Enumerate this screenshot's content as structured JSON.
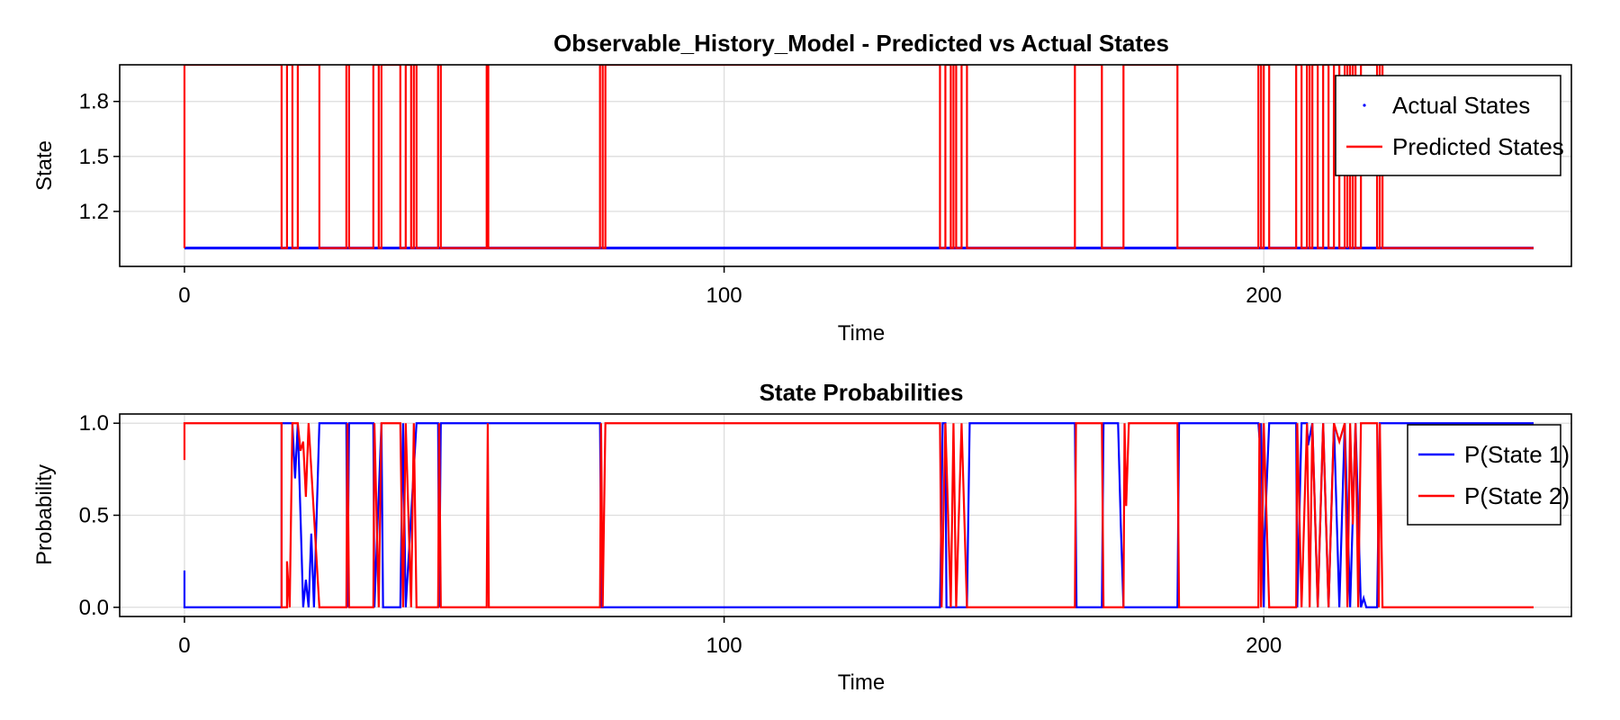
{
  "chart_data": [
    {
      "type": "line",
      "title": "Observable_History_Model - Predicted vs Actual States",
      "xlabel": "Time",
      "ylabel": "State",
      "xlim": [
        -12,
        257
      ],
      "ylim": [
        0.9,
        2.0
      ],
      "xticks": [
        0,
        100,
        200
      ],
      "yticks": [
        1.2,
        1.5,
        1.8
      ],
      "ytick_labels": [
        "1.2",
        "1.5",
        "1.8"
      ],
      "grid": true,
      "legend_position": "top-right",
      "series": [
        {
          "name": "Actual States",
          "style": "markers",
          "color": "#0000ff",
          "segments": [
            {
              "x0": 0,
              "x1": 250,
              "y": 1.0
            }
          ]
        },
        {
          "name": "Predicted States",
          "style": "step",
          "color": "#ff0000",
          "baseline": 1.0,
          "high": 2.0,
          "intervals": [
            [
              0,
              18
            ],
            [
              19,
              20
            ],
            [
              21,
              25
            ],
            [
              30,
              30.5
            ],
            [
              35,
              36
            ],
            [
              36.5,
              40
            ],
            [
              41,
              42
            ],
            [
              42.5,
              43
            ],
            [
              47,
              47.5
            ],
            [
              56,
              56.3
            ],
            [
              77,
              77.5
            ],
            [
              78,
              140
            ],
            [
              141,
              142
            ],
            [
              142.5,
              143
            ],
            [
              144,
              145
            ],
            [
              165,
              170
            ],
            [
              174,
              184
            ],
            [
              199,
              199.5
            ],
            [
              200,
              201
            ],
            [
              206,
              207
            ],
            [
              208,
              208.5
            ],
            [
              209,
              210
            ],
            [
              211,
              212
            ],
            [
              213,
              214
            ],
            [
              215,
              215.5
            ],
            [
              215.5,
              216
            ],
            [
              216.5,
              217
            ],
            [
              218,
              221
            ],
            [
              221.5,
              222
            ]
          ]
        }
      ]
    },
    {
      "type": "line",
      "title": "State Probabilities",
      "xlabel": "Time",
      "ylabel": "Probability",
      "xlim": [
        -12,
        257
      ],
      "ylim": [
        -0.05,
        1.05
      ],
      "xticks": [
        0,
        100,
        200
      ],
      "yticks": [
        0.0,
        0.5,
        1.0
      ],
      "ytick_labels": [
        "0.0",
        "0.5",
        "1.0"
      ],
      "grid": true,
      "legend_position": "top-right",
      "series": [
        {
          "name": "P(State 1)",
          "color": "#0000ff",
          "points": [
            [
              0,
              0.2
            ],
            [
              0,
              0
            ],
            [
              18,
              0
            ],
            [
              18,
              1
            ],
            [
              20,
              1
            ],
            [
              20.5,
              0.7
            ],
            [
              21,
              1
            ],
            [
              22,
              0
            ],
            [
              22.5,
              0.15
            ],
            [
              23,
              0
            ],
            [
              23.5,
              0.4
            ],
            [
              24,
              0
            ],
            [
              25,
              1
            ],
            [
              30,
              1
            ],
            [
              30.2,
              0
            ],
            [
              30.5,
              1
            ],
            [
              35,
              1
            ],
            [
              35.2,
              0
            ],
            [
              36.5,
              1
            ],
            [
              36.8,
              0
            ],
            [
              40,
              0
            ],
            [
              40.5,
              1
            ],
            [
              41,
              0
            ],
            [
              43,
              1
            ],
            [
              47,
              1
            ],
            [
              47.2,
              0
            ],
            [
              47.5,
              1
            ],
            [
              56,
              1
            ],
            [
              56.3,
              1
            ],
            [
              77,
              1
            ],
            [
              77.3,
              0
            ],
            [
              78,
              0
            ],
            [
              140,
              0
            ],
            [
              140.5,
              1
            ],
            [
              141,
              1
            ],
            [
              141.2,
              0
            ],
            [
              145,
              0
            ],
            [
              145.5,
              1
            ],
            [
              165,
              1
            ],
            [
              165.3,
              0
            ],
            [
              170,
              0
            ],
            [
              170.3,
              1
            ],
            [
              173,
              1
            ],
            [
              173.5,
              0.45
            ],
            [
              174,
              0
            ],
            [
              184,
              0
            ],
            [
              184.3,
              1
            ],
            [
              199,
              1
            ],
            [
              199.2,
              0.92
            ],
            [
              199.5,
              1
            ],
            [
              200,
              0
            ],
            [
              200.2,
              0.42
            ],
            [
              201,
              1
            ],
            [
              206,
              1
            ],
            [
              206.2,
              0
            ],
            [
              207,
              1
            ],
            [
              208,
              1
            ],
            [
              208.2,
              0.88
            ],
            [
              209,
              1
            ],
            [
              210,
              0
            ],
            [
              211,
              1
            ],
            [
              212,
              0
            ],
            [
              213,
              1
            ],
            [
              214,
              0
            ],
            [
              215,
              1
            ],
            [
              216,
              0
            ],
            [
              217,
              1
            ],
            [
              218,
              0
            ],
            [
              218.5,
              0.05
            ],
            [
              219,
              0
            ],
            [
              221,
              0
            ],
            [
              221.5,
              1
            ],
            [
              250,
              1
            ]
          ]
        },
        {
          "name": "P(State 2)",
          "color": "#ff0000",
          "points": [
            [
              0,
              0.8
            ],
            [
              0,
              1
            ],
            [
              18,
              1
            ],
            [
              18,
              0
            ],
            [
              19,
              0
            ],
            [
              19,
              0.25
            ],
            [
              19.5,
              0
            ],
            [
              20,
              1
            ],
            [
              21,
              1
            ],
            [
              21.5,
              0.85
            ],
            [
              22,
              0.9
            ],
            [
              22.5,
              0.6
            ],
            [
              23,
              1
            ],
            [
              25,
              0
            ],
            [
              30,
              0
            ],
            [
              30.2,
              1
            ],
            [
              30.5,
              0
            ],
            [
              35,
              0
            ],
            [
              35.2,
              1
            ],
            [
              36,
              0
            ],
            [
              36.5,
              1
            ],
            [
              40,
              1
            ],
            [
              40.5,
              0
            ],
            [
              41,
              1
            ],
            [
              42,
              0
            ],
            [
              42.5,
              1
            ],
            [
              43,
              0
            ],
            [
              47,
              0
            ],
            [
              47.2,
              1
            ],
            [
              47.5,
              0
            ],
            [
              56,
              0
            ],
            [
              56.2,
              1
            ],
            [
              56.4,
              0
            ],
            [
              77,
              0
            ],
            [
              77.2,
              1
            ],
            [
              77.5,
              0
            ],
            [
              78,
              1
            ],
            [
              140,
              1
            ],
            [
              140.3,
              0
            ],
            [
              141,
              1
            ],
            [
              142,
              0
            ],
            [
              142.5,
              1
            ],
            [
              143,
              0
            ],
            [
              144,
              1
            ],
            [
              145,
              0
            ],
            [
              165,
              0
            ],
            [
              165.2,
              1
            ],
            [
              170,
              1
            ],
            [
              170.3,
              0
            ],
            [
              174,
              0
            ],
            [
              174.2,
              1
            ],
            [
              174.5,
              0.55
            ],
            [
              175,
              1
            ],
            [
              184,
              1
            ],
            [
              184.3,
              0
            ],
            [
              199,
              0
            ],
            [
              199.2,
              1
            ],
            [
              199.5,
              0
            ],
            [
              200,
              1
            ],
            [
              200.5,
              0.5
            ],
            [
              201,
              0
            ],
            [
              206,
              0
            ],
            [
              206.2,
              1
            ],
            [
              207,
              0
            ],
            [
              208,
              1
            ],
            [
              208.5,
              0
            ],
            [
              209,
              1
            ],
            [
              210,
              0
            ],
            [
              211,
              1
            ],
            [
              212,
              0
            ],
            [
              213,
              1
            ],
            [
              214,
              0.9
            ],
            [
              215,
              1
            ],
            [
              215.5,
              0
            ],
            [
              216,
              1
            ],
            [
              216.5,
              0.45
            ],
            [
              217,
              1
            ],
            [
              217.5,
              0
            ],
            [
              218,
              1
            ],
            [
              221,
              1
            ],
            [
              221.3,
              0
            ],
            [
              221.5,
              1
            ],
            [
              222,
              0
            ],
            [
              250,
              0
            ]
          ]
        }
      ]
    }
  ]
}
